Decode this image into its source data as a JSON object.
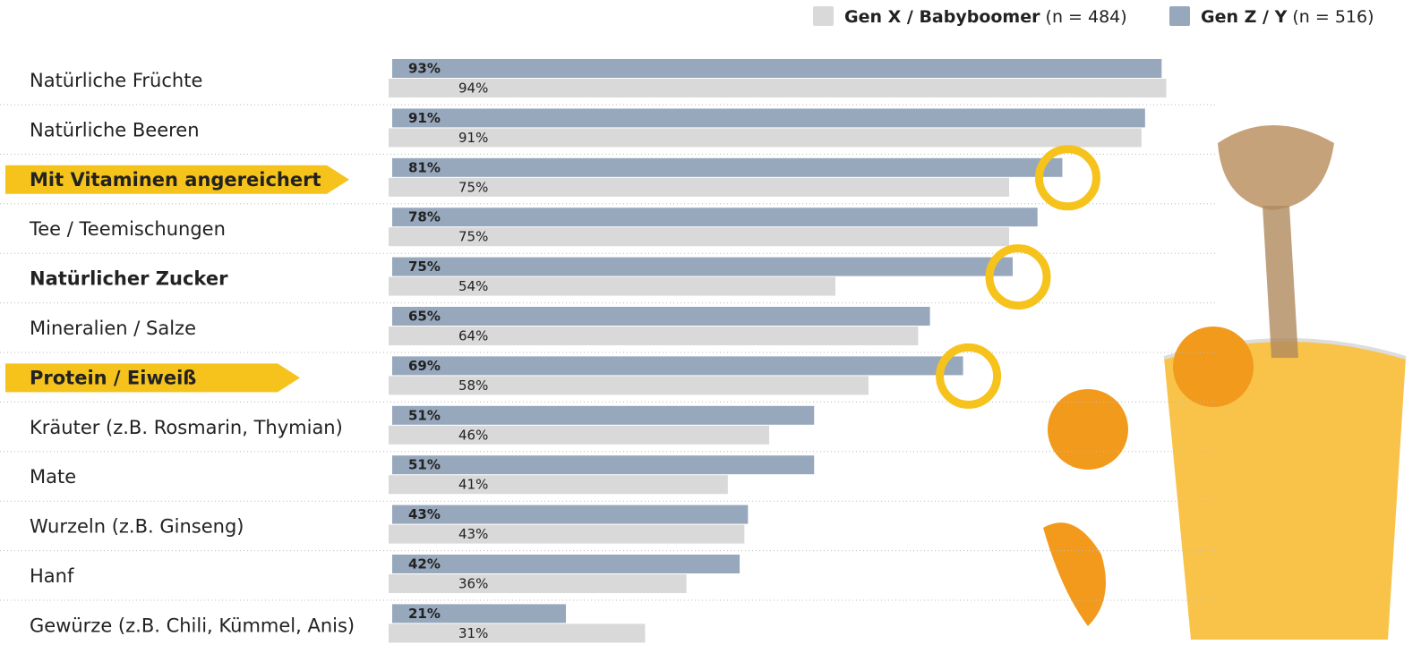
{
  "chart_data": {
    "type": "bar",
    "orientation": "horizontal",
    "categories": [
      "Natürliche Früchte",
      "Natürliche Beeren",
      "Mit Vitaminen angereichert",
      "Tee / Teemischungen",
      "Natürlicher Zucker",
      "Mineralien / Salze",
      "Protein / Eiweiß",
      "Kräuter (z.B. Rosmarin, Thymian)",
      "Mate",
      "Wurzeln (z.B. Ginseng)",
      "Hanf",
      "Gewürze (z.B. Chili, Kümmel, Anis)"
    ],
    "series": [
      {
        "name": "Gen Z / Y",
        "sample": "(n = 516)",
        "color": "#97a8bd",
        "values": [
          93,
          91,
          81,
          78,
          75,
          65,
          69,
          51,
          51,
          43,
          42,
          21
        ],
        "value_labels": [
          "93%",
          "91%",
          "81%",
          "78%",
          "75%",
          "65%",
          "69%",
          "51%",
          "51%",
          "43%",
          "42%",
          "21%"
        ]
      },
      {
        "name": "Gen X / Babyboomer",
        "sample": "(n = 484)",
        "color": "#d9d9d9",
        "values": [
          94,
          91,
          75,
          75,
          54,
          64,
          58,
          46,
          41,
          43,
          36,
          31
        ],
        "value_labels": [
          "94%",
          "91%",
          "75%",
          "75%",
          "54%",
          "64%",
          "58%",
          "46%",
          "41%",
          "43%",
          "36%",
          "31%"
        ]
      }
    ],
    "xlim": [
      0,
      100
    ],
    "highlight_arrow": [
      2,
      6
    ],
    "bold_categories": [
      2,
      4,
      6
    ],
    "circled": [
      2,
      4,
      6
    ],
    "highlight_color": "#f6c31c"
  }
}
